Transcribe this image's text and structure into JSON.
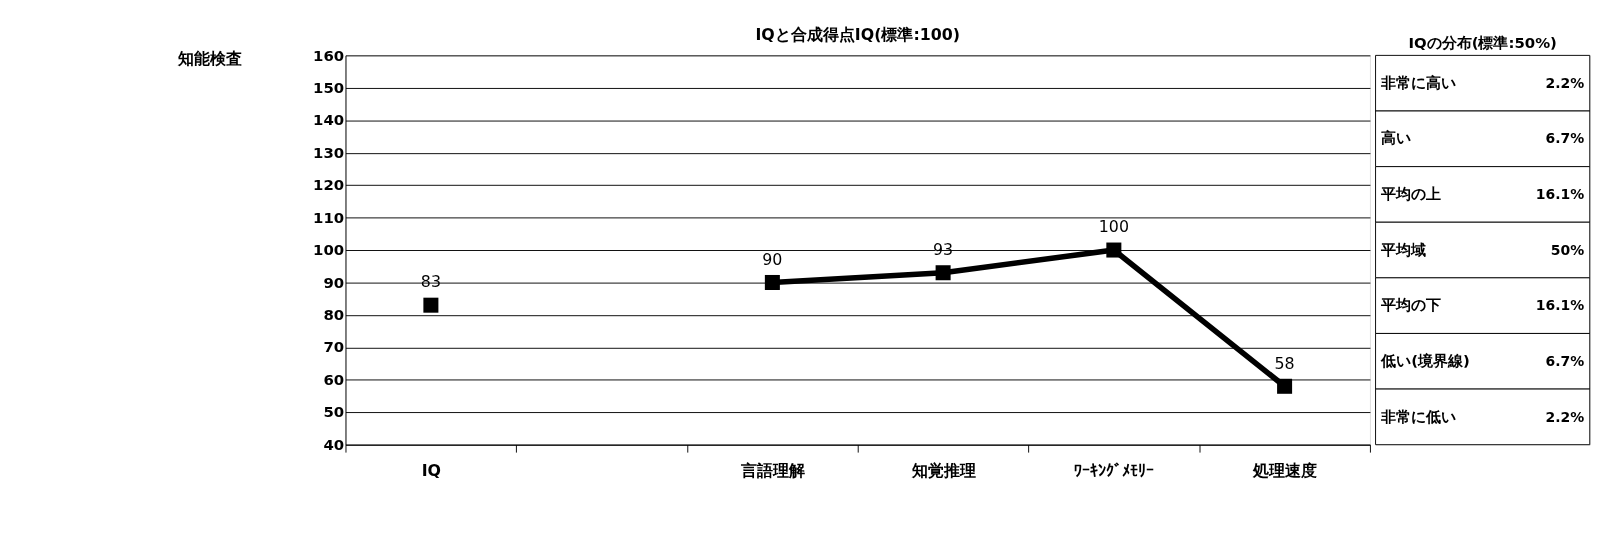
{
  "chart_data": [
    {
      "type": "line",
      "title": "IQと合成得点IQ(標準:100)",
      "annotations": [
        "知能検査"
      ],
      "categories": [
        "IQ",
        null,
        "言語理解",
        "知覚推理",
        "ﾜｰｷﾝｸﾞﾒﾓﾘｰ",
        "処理速度"
      ],
      "series": [
        {
          "color": "#000000",
          "values": [
            83,
            null,
            90,
            93,
            100,
            58
          ]
        }
      ],
      "ylim": [
        40,
        160
      ],
      "yticks": [
        40,
        50,
        60,
        70,
        80,
        90,
        100,
        110,
        120,
        130,
        140,
        150,
        160
      ],
      "grid": "y",
      "marker": "square",
      "line_style": "solid",
      "data_labels": true
    },
    {
      "type": "other",
      "title": "IQの分布(標準:50%)",
      "categories": [
        "非常に高い",
        "高い",
        "平均の上",
        "平均域",
        "平均の下",
        "低い(境界線)",
        "非常に低い"
      ],
      "value_labels": [
        "2.2%",
        "6.7%",
        "16.1%",
        "50%",
        "16.1%",
        "6.7%",
        "2.2%"
      ]
    }
  ]
}
